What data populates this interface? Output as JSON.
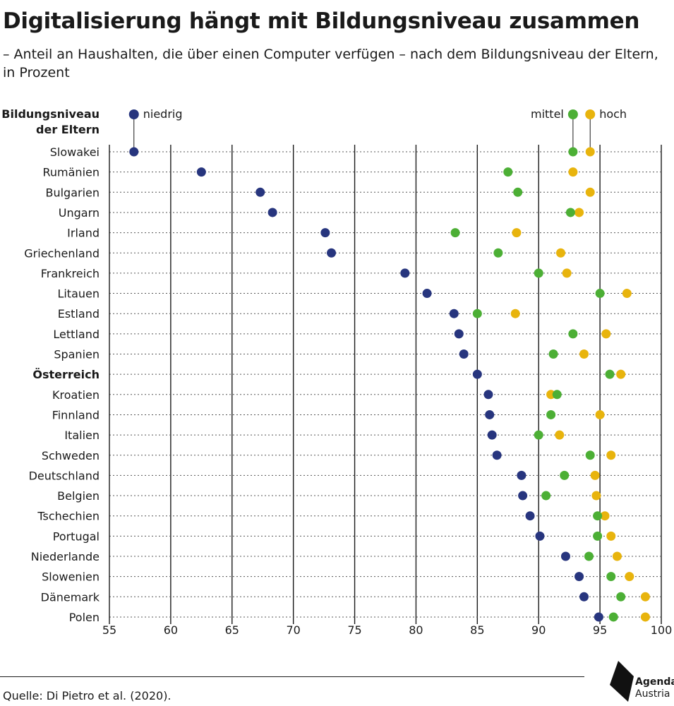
{
  "header": {
    "title": "Digitalisierung hängt mit Bildungsniveau zusammen",
    "subtitle": "– Anteil an Haushalten, die über einen Computer verfügen – nach dem Bildungsniveau der Eltern, in Prozent"
  },
  "footer": {
    "source": "Quelle: Di Pietro et al. (2020).",
    "logo_word1": "Agenda",
    "logo_word2": "Austria"
  },
  "chart_data": {
    "type": "scatter",
    "category_label": [
      "Bildungsniveau",
      "der Eltern"
    ],
    "categories": [
      "Slowakei",
      "Rumänien",
      "Bulgarien",
      "Ungarn",
      "Irland",
      "Griechenland",
      "Frankreich",
      "Litauen",
      "Estland",
      "Lettland",
      "Spanien",
      "Österreich",
      "Kroatien",
      "Finnland",
      "Italien",
      "Schweden",
      "Deutschland",
      "Belgien",
      "Tschechien",
      "Portugal",
      "Niederlande",
      "Slowenien",
      "Dänemark",
      "Polen"
    ],
    "highlight": "Österreich",
    "xlim": [
      55,
      100
    ],
    "xticks": [
      55,
      60,
      65,
      70,
      75,
      80,
      85,
      90,
      95,
      100
    ],
    "grid": true,
    "legend_position": "top",
    "series": [
      {
        "name": "niedrig",
        "color": "#27357e",
        "values": [
          57.0,
          62.5,
          67.3,
          68.3,
          72.6,
          73.1,
          79.1,
          80.9,
          83.1,
          83.5,
          83.9,
          85.0,
          85.9,
          86.0,
          86.2,
          86.6,
          88.6,
          88.7,
          89.3,
          90.1,
          92.2,
          93.3,
          93.7,
          94.9
        ]
      },
      {
        "name": "mittel",
        "color": "#4caf35",
        "values": [
          92.8,
          87.5,
          88.3,
          92.6,
          83.2,
          86.7,
          90.0,
          95.0,
          85.0,
          92.8,
          91.2,
          95.8,
          91.5,
          91.0,
          90.0,
          94.2,
          92.1,
          90.6,
          94.8,
          94.8,
          94.1,
          95.9,
          96.7,
          96.1
        ]
      },
      {
        "name": "hoch",
        "color": "#e8b40d",
        "values": [
          94.2,
          92.8,
          94.2,
          93.3,
          88.2,
          91.8,
          92.3,
          97.2,
          88.1,
          95.5,
          93.7,
          96.7,
          91.0,
          95.0,
          91.7,
          95.9,
          94.6,
          94.7,
          95.4,
          95.9,
          96.4,
          97.4,
          98.7,
          98.7
        ]
      }
    ]
  }
}
